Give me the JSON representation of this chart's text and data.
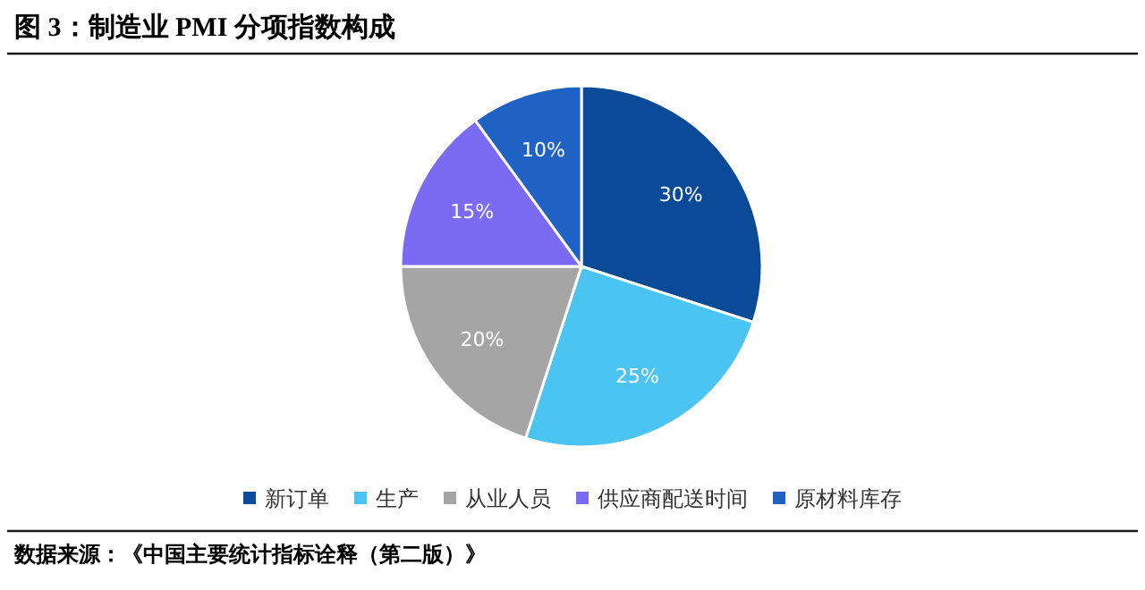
{
  "chart_data": {
    "type": "pie",
    "title": "图 3：制造业 PMI 分项指数构成",
    "categories": [
      "新订单",
      "生产",
      "从业人员",
      "供应商配送时间",
      "原材料库存"
    ],
    "values": [
      30,
      25,
      20,
      15,
      10
    ],
    "value_labels": [
      "30%",
      "25%",
      "20%",
      "15%",
      "10%"
    ],
    "colors": [
      "#0b4a96",
      "#4cc4f2",
      "#a5a5a5",
      "#7a6bf2",
      "#1f62c4"
    ],
    "legend": "bottom",
    "annotations": [
      "数据来源：《中国主要统计指标诠释（第二版）》"
    ]
  }
}
